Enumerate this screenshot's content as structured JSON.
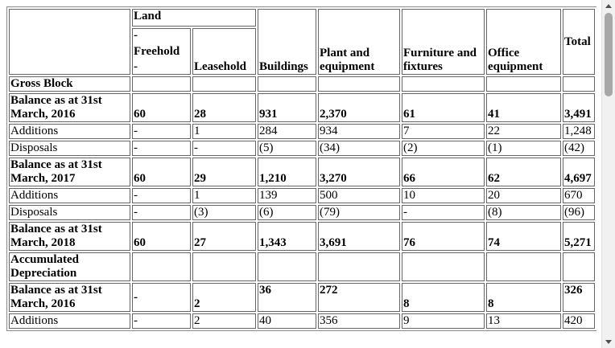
{
  "header": {
    "land": "Land",
    "freehold": [
      "-",
      "Freehold",
      "-"
    ],
    "leasehold": "Leasehold",
    "buildings": "Buildings",
    "plant": "Plant and equipment",
    "furniture": "Furniture and fixtures",
    "office": "Office equipment",
    "total": "Total"
  },
  "table": {
    "rows": [
      {
        "label": "Gross Block",
        "bold": true
      },
      {
        "label": "Balance as at 31st March, 2016",
        "bold": true,
        "cells": [
          "60",
          "28",
          "931",
          "2,370",
          "61",
          "41",
          "3,491"
        ]
      },
      {
        "label": "Additions",
        "cells": [
          "-",
          "1",
          "284",
          "934",
          "7",
          "22",
          "1,248"
        ]
      },
      {
        "label": "Disposals",
        "cells": [
          "-",
          "-",
          "(5)",
          "(34)",
          "(2)",
          "(1)",
          "(42)"
        ]
      },
      {
        "label": "Balance as at 31st March, 2017",
        "bold": true,
        "cells": [
          "60",
          "29",
          "1,210",
          "3,270",
          "66",
          "62",
          "4,697"
        ]
      },
      {
        "label": "Additions",
        "cells": [
          "-",
          "1",
          "139",
          "500",
          "10",
          "20",
          "670"
        ]
      },
      {
        "label": "Disposals",
        "cells": [
          "-",
          "(3)",
          "(6)",
          "(79)",
          "-",
          "(8)",
          "(96)"
        ]
      },
      {
        "label": "Balance as at 31st March, 2018",
        "bold": true,
        "cells": [
          "60",
          "27",
          "1,343",
          "3,691",
          "76",
          "74",
          "5,271"
        ]
      },
      {
        "label": "Accumulated Depreciation",
        "bold": true
      },
      {
        "label": "Balance as at 31st March, 2016",
        "bold": true,
        "cells": [
          "-",
          "2",
          "36",
          "272",
          "8",
          "8",
          "326"
        ]
      },
      {
        "label": "Additions",
        "cells": [
          "-",
          "2",
          "40",
          "356",
          "9",
          "13",
          "420"
        ]
      }
    ]
  }
}
